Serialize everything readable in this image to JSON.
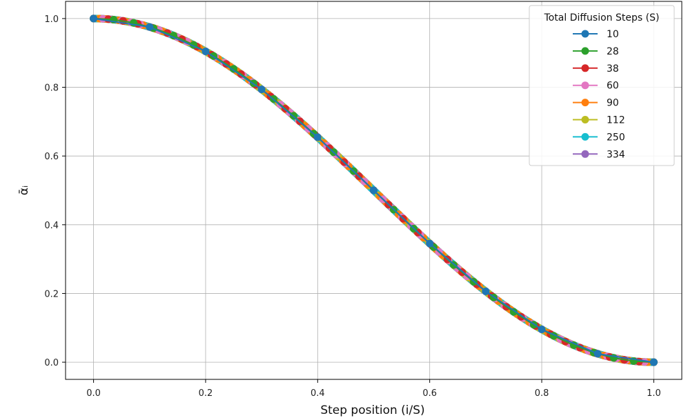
{
  "chart_data": {
    "type": "line",
    "xlabel": "Step position (i/S)",
    "ylabel": "ᾱᵢ",
    "xlim": [
      -0.05,
      1.05
    ],
    "ylim": [
      -0.05,
      1.05
    ],
    "xticks": [
      "0.0",
      "0.2",
      "0.4",
      "0.6",
      "0.8",
      "1.0"
    ],
    "yticks": [
      "0.0",
      "0.2",
      "0.4",
      "0.6",
      "0.8",
      "1.0"
    ],
    "grid": true,
    "curve": "cosine",
    "legend": {
      "title": "Total Diffusion Steps (S)",
      "placement": "top-right"
    },
    "series": [
      {
        "name": "10",
        "steps": 10,
        "color": "#1f77b4"
      },
      {
        "name": "28",
        "steps": 28,
        "color": "#2ca02c"
      },
      {
        "name": "38",
        "steps": 38,
        "color": "#d62728"
      },
      {
        "name": "60",
        "steps": 60,
        "color": "#e377c2"
      },
      {
        "name": "90",
        "steps": 90,
        "color": "#ff7f0e"
      },
      {
        "name": "112",
        "steps": 112,
        "color": "#bcbd22"
      },
      {
        "name": "250",
        "steps": 250,
        "color": "#17becf"
      },
      {
        "name": "334",
        "steps": 334,
        "color": "#9467bd"
      }
    ],
    "draw_order": [
      7,
      6,
      5,
      4,
      3,
      2,
      1,
      0
    ]
  }
}
